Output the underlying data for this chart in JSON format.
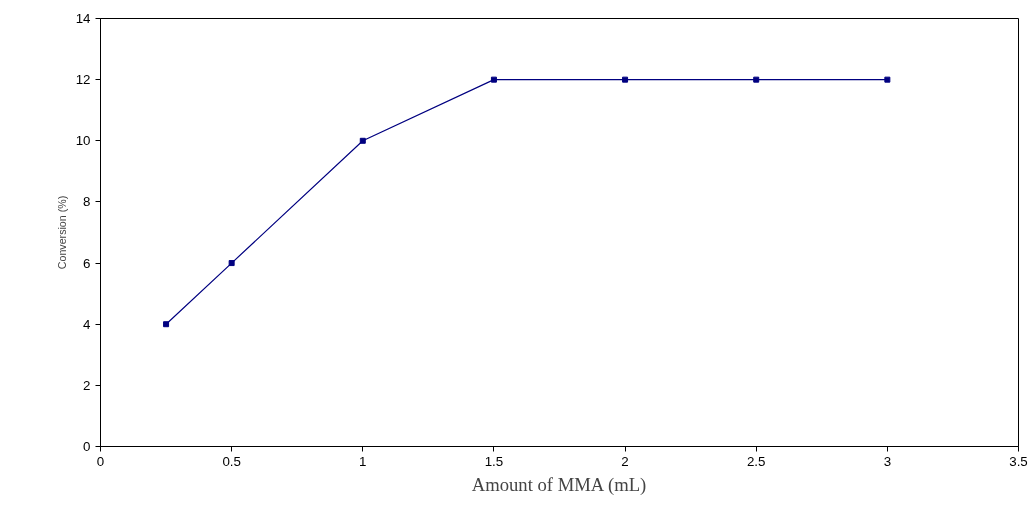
{
  "chart_data": {
    "type": "line",
    "xlabel": "Amount of MMA (mL)",
    "ylabel": "Conversion (%)",
    "x": [
      0.25,
      0.5,
      1,
      1.5,
      2,
      2.5,
      3
    ],
    "series": [
      {
        "color": "#000080",
        "values": [
          4,
          6,
          10,
          12,
          12,
          12,
          12
        ]
      }
    ],
    "xlim": [
      0,
      3.5
    ],
    "xticks": [
      0,
      0.5,
      1,
      1.5,
      2,
      2.5,
      3,
      3.5
    ],
    "ylim": [
      0,
      14
    ],
    "yticks": [
      0,
      2,
      4,
      6,
      8,
      10,
      12,
      14
    ],
    "marker": "square",
    "line_style": "solid",
    "grid": false
  }
}
